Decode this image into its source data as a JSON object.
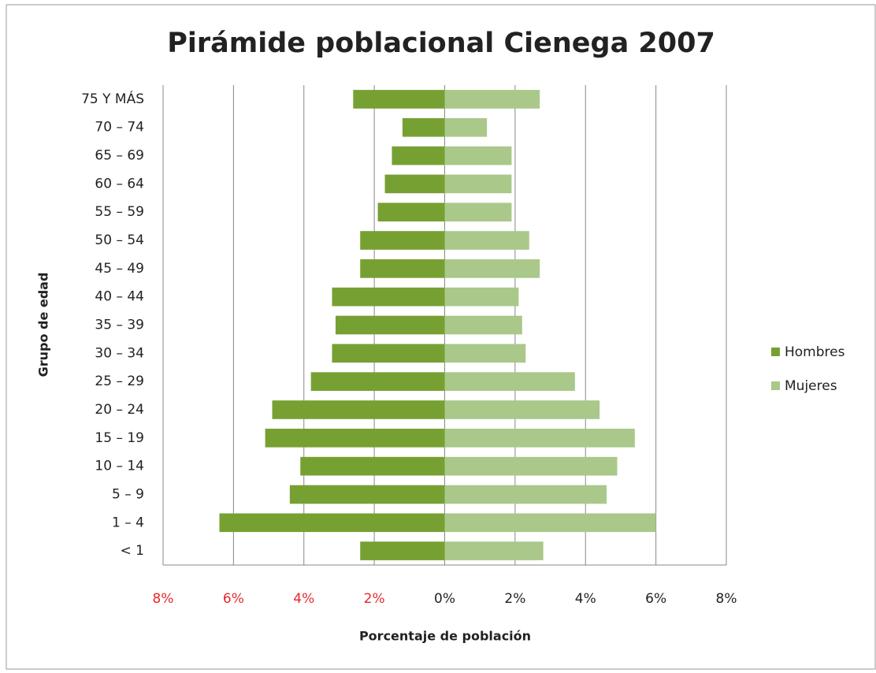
{
  "chart_data": {
    "type": "bar",
    "orientation": "horizontal",
    "stacked": true,
    "title": "Pirámide poblacional Cienega 2007",
    "x_label": "Porcentaje de población",
    "y_label": "Grupo de edad",
    "categories": [
      "< 1",
      "1 – 4",
      "5 – 9",
      "10 – 14",
      "15 – 19",
      "20 – 24",
      "25 – 29",
      "30 – 34",
      "35 – 39",
      "40 – 44",
      "45 – 49",
      "50 – 54",
      "55 – 59",
      "60 – 64",
      "65 – 69",
      "70 – 74",
      "75 Y MÁS"
    ],
    "series": [
      {
        "name": "Hombres",
        "color": "#77a032",
        "values": [
          -2.4,
          -6.4,
          -4.4,
          -4.1,
          -5.1,
          -4.9,
          -3.8,
          -3.2,
          -3.1,
          -3.2,
          -2.4,
          -2.4,
          -1.9,
          -1.7,
          -1.5,
          -1.2,
          -2.6
        ]
      },
      {
        "name": "Mujeres",
        "color": "#a9c889",
        "values": [
          2.8,
          6.0,
          4.6,
          4.9,
          5.4,
          4.4,
          3.7,
          2.3,
          2.2,
          2.1,
          2.7,
          2.4,
          1.9,
          1.9,
          1.9,
          1.2,
          2.7
        ]
      }
    ],
    "xlim": [
      -8,
      8
    ],
    "xticks": [
      {
        "value": -8,
        "label": "8%"
      },
      {
        "value": -6,
        "label": "6%"
      },
      {
        "value": -4,
        "label": "4%"
      },
      {
        "value": -2,
        "label": "2%"
      },
      {
        "value": 0,
        "label": "0%"
      },
      {
        "value": 2,
        "label": "2%"
      },
      {
        "value": 4,
        "label": "4%"
      },
      {
        "value": 6,
        "label": "6%"
      },
      {
        "value": 8,
        "label": "8%"
      }
    ],
    "negative_tick_color": "#e8282a",
    "grid": true,
    "legend": "right"
  }
}
